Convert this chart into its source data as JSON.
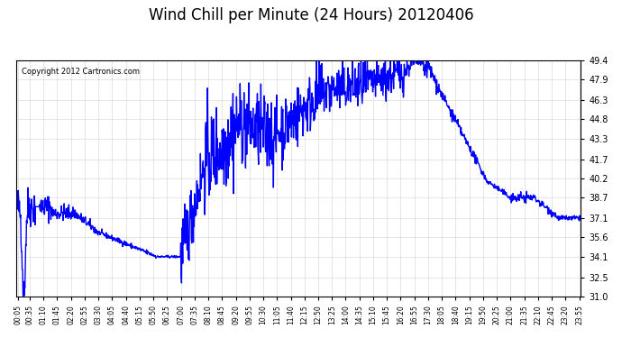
{
  "title": "Wind Chill per Minute (24 Hours) 20120406",
  "copyright_text": "Copyright 2012 Cartronics.com",
  "line_color": "#0000ff",
  "background_color": "#ffffff",
  "grid_color": "#cccccc",
  "ylim": [
    31.0,
    49.4
  ],
  "yticks": [
    31.0,
    32.5,
    34.1,
    35.6,
    37.1,
    38.7,
    40.2,
    41.7,
    43.3,
    44.8,
    46.3,
    47.9,
    49.4
  ],
  "xlabel_rotation": 90,
  "title_fontsize": 12,
  "line_width": 1.0
}
